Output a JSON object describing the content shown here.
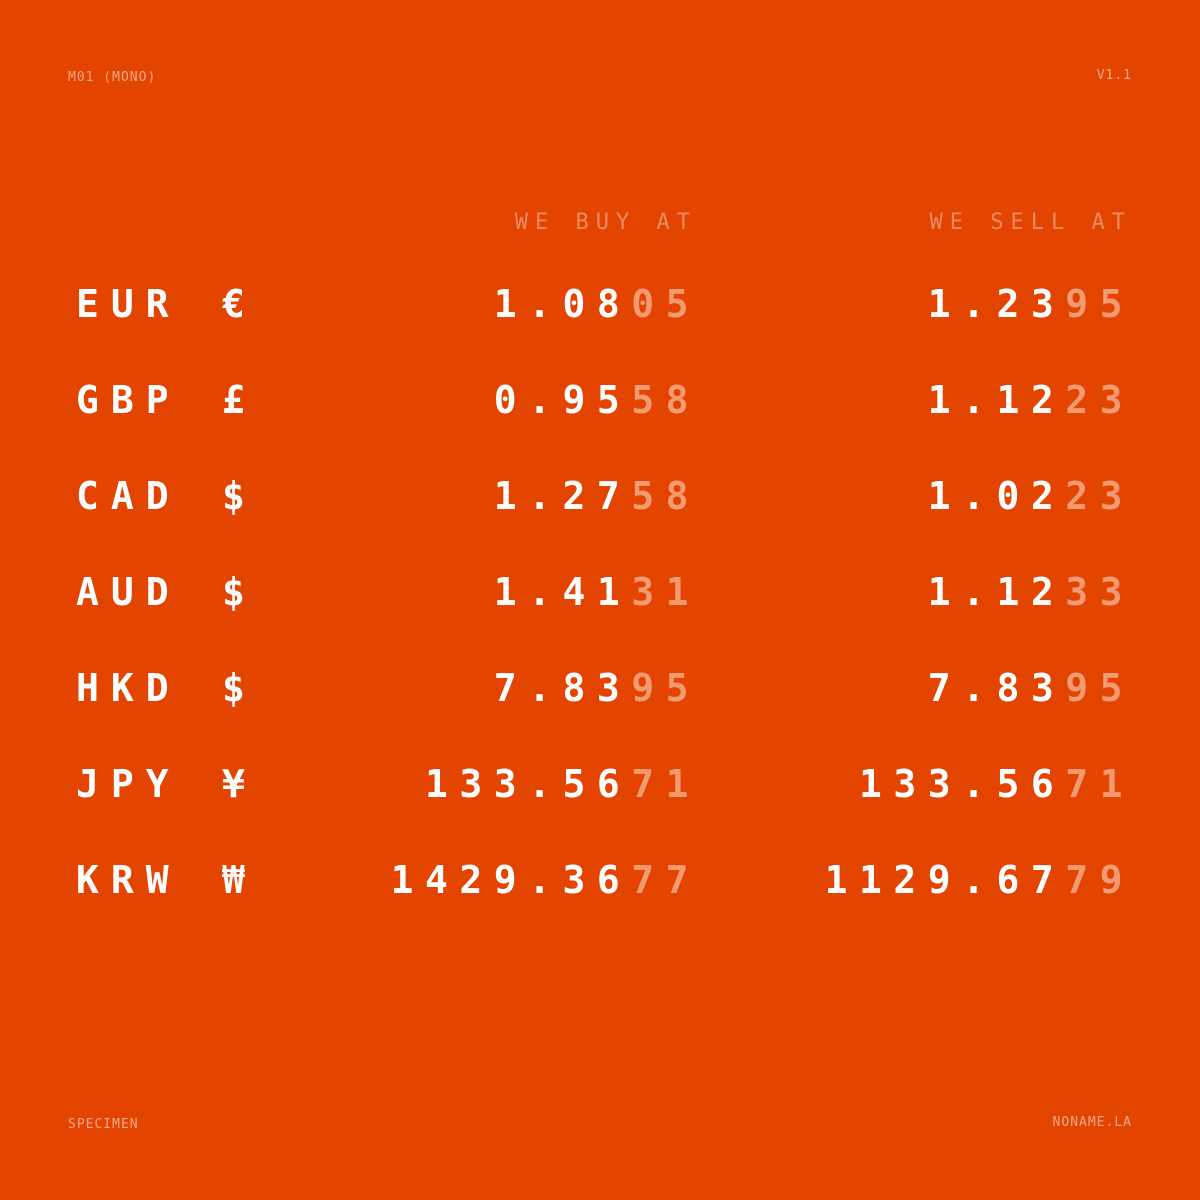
{
  "header": {
    "left": "M01 (MONO)",
    "right": "V1.1"
  },
  "footer": {
    "left": "SPECIMEN",
    "right": "NONAME.LA"
  },
  "columns": {
    "buy": "WE BUY AT",
    "sell": "WE SELL AT"
  },
  "colors": {
    "background": "#e34400",
    "primary_digits": "#ffffff",
    "secondary_digits": "#f39a72"
  },
  "rates": [
    {
      "code": "EUR",
      "symbol": "€",
      "buy_main": "1.08",
      "buy_tail": "05",
      "sell_main": "1.23",
      "sell_tail": "95"
    },
    {
      "code": "GBP",
      "symbol": "£",
      "buy_main": "0.95",
      "buy_tail": "58",
      "sell_main": "1.12",
      "sell_tail": "23"
    },
    {
      "code": "CAD",
      "symbol": "$",
      "buy_main": "1.27",
      "buy_tail": "58",
      "sell_main": "1.02",
      "sell_tail": "23"
    },
    {
      "code": "AUD",
      "symbol": "$",
      "buy_main": "1.41",
      "buy_tail": "31",
      "sell_main": "1.12",
      "sell_tail": "33"
    },
    {
      "code": "HKD",
      "symbol": "$",
      "buy_main": "7.83",
      "buy_tail": "95",
      "sell_main": "7.83",
      "sell_tail": "95"
    },
    {
      "code": "JPY",
      "symbol": "¥",
      "buy_main": "133.56",
      "buy_tail": "71",
      "sell_main": "133.56",
      "sell_tail": "71"
    },
    {
      "code": "KRW",
      "symbol": "₩",
      "buy_main": "1429.36",
      "buy_tail": "77",
      "sell_main": "1129.67",
      "sell_tail": "79"
    }
  ]
}
